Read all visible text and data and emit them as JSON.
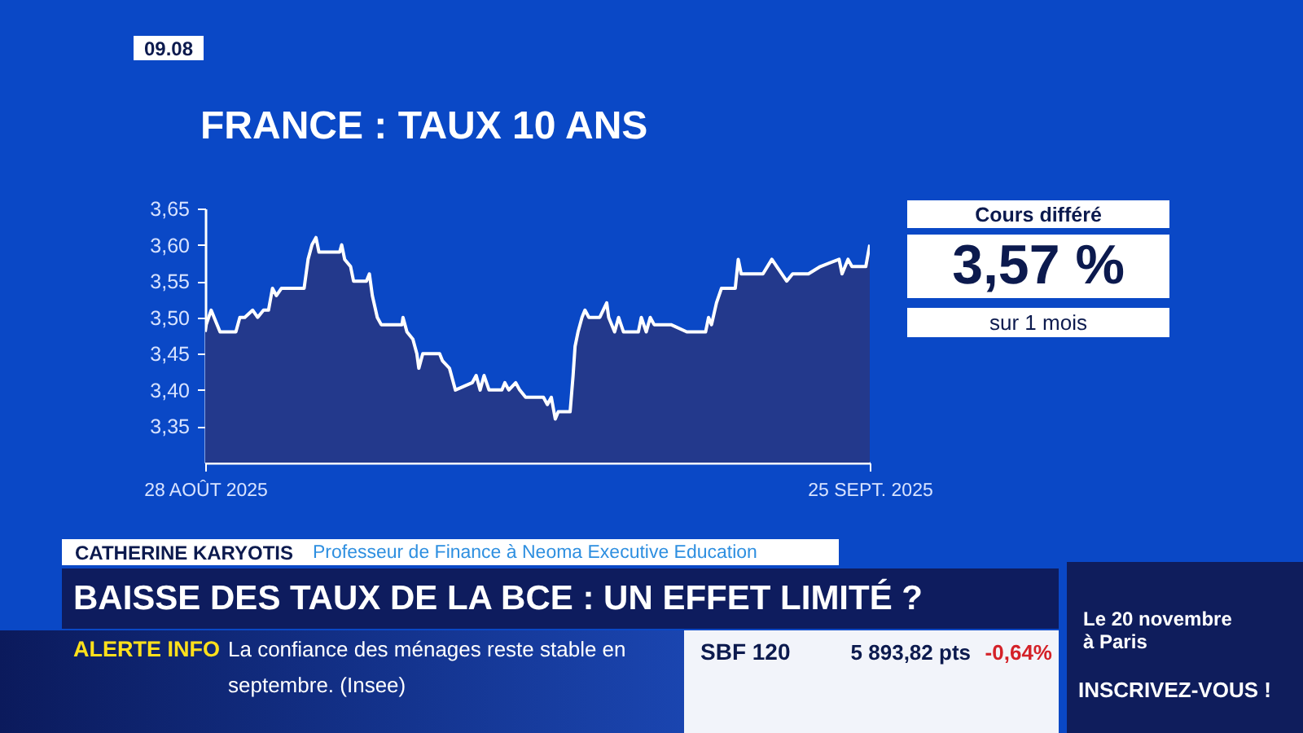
{
  "chart_data": {
    "type": "area",
    "title": "FRANCE : TAUX 10 ANS",
    "x": [
      "2025-08-28T00:00",
      "2025-08-28T01:00",
      "2025-08-28T06:00",
      "2025-08-28T09:00",
      "2025-08-28T15:00",
      "2025-08-29T07:00",
      "2025-08-29T11:00",
      "2025-08-29T16:00",
      "2025-08-30T00:00",
      "2025-08-30T05:00",
      "2025-08-30T11:00",
      "2025-08-30T16:00",
      "2025-08-30T20:00",
      "2025-08-31T00:00",
      "2025-08-31T05:00",
      "2025-09-01T04:00",
      "2025-09-01T08:00",
      "2025-09-01T12:00",
      "2025-09-01T16:00",
      "2025-09-01T19:00",
      "2025-09-01T23:00",
      "2025-09-02T16:00",
      "2025-09-02T18:00",
      "2025-09-02T21:00",
      "2025-09-03T03:00",
      "2025-09-03T06:00",
      "2025-09-03T19:00",
      "2025-09-03T22:00",
      "2025-09-04T01:00",
      "2025-09-04T06:00",
      "2025-09-04T10:00",
      "2025-09-05T07:00",
      "2025-09-05T08:00",
      "2025-09-05T12:00",
      "2025-09-05T18:00",
      "2025-09-05T22:00",
      "2025-09-06T00:00",
      "2025-09-06T04:00",
      "2025-09-06T21:00",
      "2025-09-07T00:00",
      "2025-09-07T07:00",
      "2025-09-07T11:00",
      "2025-09-07T13:00",
      "2025-09-08T06:00",
      "2025-09-08T10:00",
      "2025-09-08T14:00",
      "2025-09-08T18:00",
      "2025-09-08T23:00",
      "2025-09-09T12:00",
      "2025-09-09T15:00",
      "2025-09-09T19:00",
      "2025-09-10T02:00",
      "2025-09-10T06:00",
      "2025-09-10T12:00",
      "2025-09-10T16:00",
      "2025-09-11T06:00",
      "2025-09-11T10:00",
      "2025-09-11T14:00",
      "2025-09-11T18:00",
      "2025-09-11T21:00",
      "2025-09-12T09:00",
      "2025-09-12T12:00",
      "2025-09-12T14:00",
      "2025-09-12T17:00",
      "2025-09-12T21:00",
      "2025-09-13T00:00",
      "2025-09-13T04:00",
      "2025-09-13T15:00",
      "2025-09-13T22:00",
      "2025-09-14T00:00",
      "2025-09-14T06:00",
      "2025-09-14T10:00",
      "2025-09-14T15:00",
      "2025-09-15T06:00",
      "2025-09-15T09:00",
      "2025-09-15T14:00",
      "2025-09-15T18:00",
      "2025-09-15T22:00",
      "2025-09-16T15:00",
      "2025-09-17T07:00",
      "2025-09-18T02:00",
      "2025-09-18T05:00",
      "2025-09-18T08:00",
      "2025-09-18T13:00",
      "2025-09-18T18:00",
      "2025-09-19T08:00",
      "2025-09-19T11:00",
      "2025-09-19T14:00",
      "2025-09-19T19:00",
      "2025-09-20T12:00",
      "2025-09-20T21:00",
      "2025-09-21T02:00",
      "2025-09-21T12:00",
      "2025-09-21T18:00",
      "2025-09-22T10:00",
      "2025-09-22T22:00",
      "2025-09-23T17:00",
      "2025-09-23T20:00",
      "2025-09-24T02:00",
      "2025-09-24T06:00",
      "2025-09-24T20:00",
      "2025-09-25T00:00"
    ],
    "series": [
      {
        "color": "#23398c",
        "values": [
          3.48,
          3.49,
          3.51,
          3.5,
          3.48,
          3.48,
          3.5,
          3.5,
          3.51,
          3.5,
          3.51,
          3.51,
          3.54,
          3.53,
          3.54,
          3.54,
          3.58,
          3.6,
          3.61,
          3.59,
          3.59,
          3.59,
          3.6,
          3.58,
          3.57,
          3.55,
          3.55,
          3.56,
          3.53,
          3.5,
          3.49,
          3.49,
          3.5,
          3.48,
          3.47,
          3.45,
          3.43,
          3.45,
          3.45,
          3.44,
          3.43,
          3.41,
          3.4,
          3.41,
          3.42,
          3.4,
          3.42,
          3.4,
          3.4,
          3.41,
          3.4,
          3.41,
          3.4,
          3.39,
          3.39,
          3.39,
          3.38,
          3.39,
          3.36,
          3.37,
          3.37,
          3.42,
          3.46,
          3.48,
          3.5,
          3.51,
          3.5,
          3.5,
          3.52,
          3.5,
          3.48,
          3.5,
          3.48,
          3.48,
          3.5,
          3.48,
          3.5,
          3.49,
          3.49,
          3.48,
          3.48,
          3.5,
          3.49,
          3.52,
          3.54,
          3.54,
          3.58,
          3.56,
          3.56,
          3.56,
          3.58,
          3.57,
          3.55,
          3.56,
          3.56,
          3.57,
          3.58,
          3.56,
          3.58,
          3.57,
          3.57,
          3.6
        ]
      }
    ],
    "xlim": [
      "2025-08-28T00:00",
      "2025-09-25T00:00"
    ],
    "xticks": [
      {
        "value": "2025-08-28T00:00",
        "label": "28 AOÛT 2025"
      },
      {
        "value": "2025-09-25T00:00",
        "label": "25 SEPT. 2025"
      }
    ],
    "ylim": [
      3.3,
      3.65
    ],
    "yticks": [
      {
        "value": 3.35,
        "label": "3,35"
      },
      {
        "value": 3.4,
        "label": "3,40"
      },
      {
        "value": 3.45,
        "label": "3,45"
      },
      {
        "value": 3.5,
        "label": "3,50"
      },
      {
        "value": 3.55,
        "label": "3,55"
      },
      {
        "value": 3.6,
        "label": "3,60"
      },
      {
        "value": 3.65,
        "label": "3,65"
      }
    ],
    "grid": false,
    "annotations": [
      "09.08",
      "Cours différé",
      "3,57 %",
      "sur 1 mois",
      "CATHERINE KARYOTIS",
      "Professeur de Finance à Neoma Executive Education",
      "BAISSE DES TAUX DE LA BCE : UN EFFET LIMITÉ ?",
      "ALERTE INFO",
      "La confiance des ménages reste stable en septembre. (Insee)",
      "SBF 120",
      "5 893,82 pts",
      "-0,64%",
      "Le 20 novembre à Paris",
      "INSCRIVEZ-VOUS !"
    ]
  }
}
